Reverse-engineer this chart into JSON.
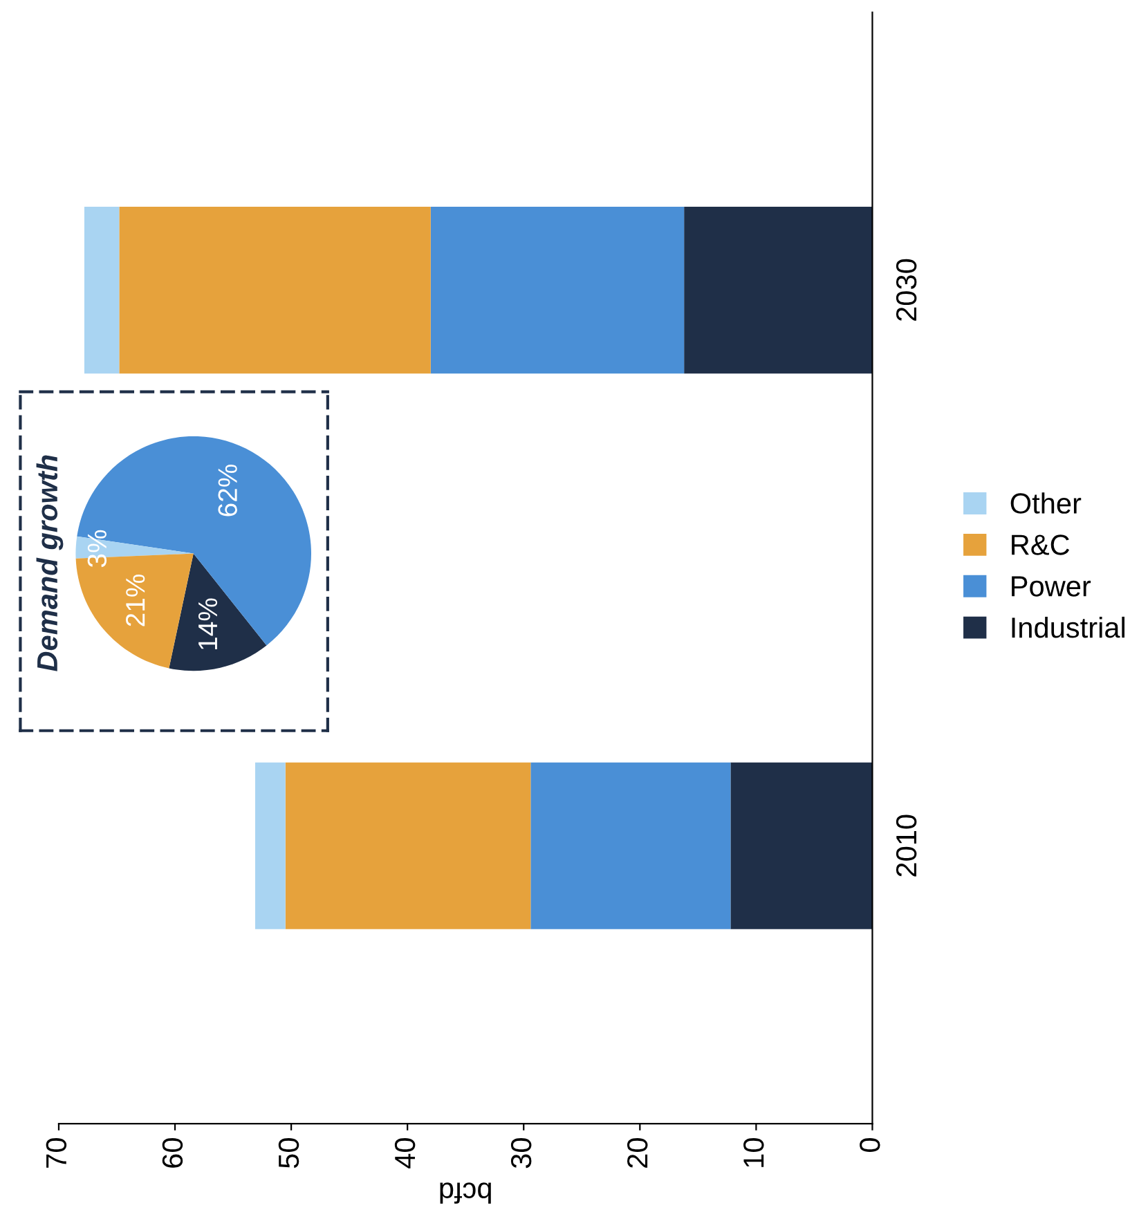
{
  "chart_data": [
    {
      "type": "bar",
      "orientation": "horizontal",
      "stacked": true,
      "xlabel": "bcfd",
      "categories": [
        "2030",
        "2010"
      ],
      "series": [
        {
          "name": "Industrial",
          "color": "#1f2f48",
          "values": [
            16.2,
            12.2
          ]
        },
        {
          "name": "Power",
          "color": "#4a8fd6",
          "values": [
            21.8,
            17.2
          ]
        },
        {
          "name": "R&C",
          "color": "#e6a23c",
          "values": [
            26.8,
            21.1
          ]
        },
        {
          "name": "Other",
          "color": "#a9d4f2",
          "values": [
            3.0,
            2.6
          ]
        }
      ],
      "xlim": [
        70,
        0
      ],
      "xticks": [
        0,
        10,
        20,
        30,
        40,
        50,
        60,
        70
      ],
      "grid": false,
      "legend": "right"
    },
    {
      "type": "pie",
      "title": "Demand growth",
      "categories": [
        null,
        null,
        null,
        null
      ],
      "values": [
        14,
        62,
        3,
        21
      ],
      "colors": [
        "#1f2f48",
        "#4a8fd6",
        "#a9d4f2",
        "#e6a23c"
      ],
      "value_labels": [
        "14%",
        "62%",
        "3%",
        "21%"
      ]
    }
  ]
}
